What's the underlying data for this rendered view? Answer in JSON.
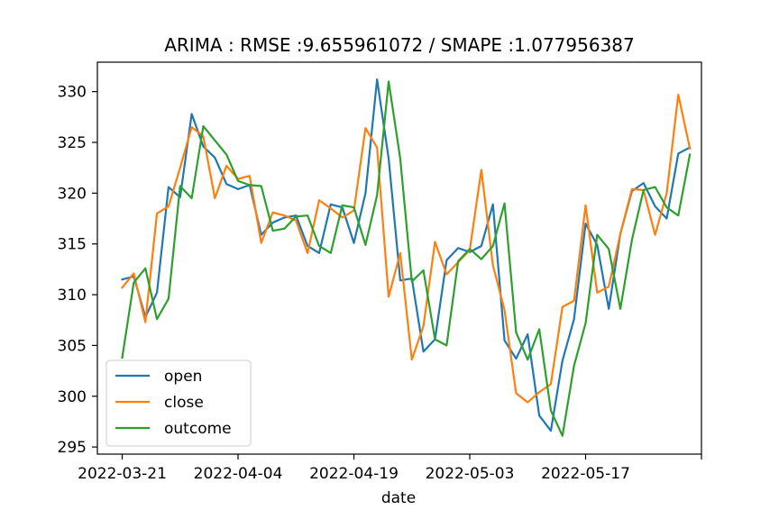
{
  "chart_data": {
    "type": "line",
    "title": "ARIMA : RMSE :9.655961072 / SMAPE :1.077956387",
    "xlabel": "date",
    "ylabel": "",
    "ylim": [
      294.3,
      332.9
    ],
    "yticks": [
      295,
      300,
      305,
      310,
      315,
      320,
      325,
      330
    ],
    "xlim": [
      -3,
      70
    ],
    "xticks": [
      {
        "x": 0,
        "label": "2022-03-21"
      },
      {
        "x": 14,
        "label": "2022-04-04"
      },
      {
        "x": 28,
        "label": "2022-04-19"
      },
      {
        "x": 42,
        "label": "2022-05-03"
      },
      {
        "x": 56,
        "label": "2022-05-17"
      },
      {
        "x": 70,
        "label": ""
      }
    ],
    "x": [
      0,
      1.4,
      2.8,
      4.2,
      5.6,
      7,
      8.4,
      9.8,
      11.2,
      12.6,
      14,
      15.4,
      16.8,
      18.2,
      19.6,
      21,
      22.4,
      23.8,
      25.2,
      26.6,
      28,
      29.4,
      30.8,
      32.2,
      33.6,
      35,
      36.4,
      37.8,
      39.2,
      40.6,
      42,
      43.4,
      44.8,
      46.2,
      47.6,
      49,
      50.4,
      51.8,
      53.2,
      54.6,
      56,
      57.4,
      58.8,
      60.2,
      61.6,
      63,
      64.4,
      65.8,
      67.2,
      68.6
    ],
    "series": [
      {
        "name": "open",
        "color": "#1f77b4",
        "values": [
          311.5,
          311.8,
          307.8,
          310.2,
          320.6,
          319.6,
          327.8,
          324.6,
          323.5,
          320.9,
          320.4,
          320.8,
          315.9,
          317.1,
          317.6,
          317.8,
          314.8,
          314.1,
          318.9,
          318.6,
          315.1,
          320.0,
          331.2,
          323.4,
          311.4,
          311.6,
          304.4,
          305.6,
          313.4,
          314.6,
          314.2,
          314.8,
          318.9,
          305.5,
          303.7,
          306.1,
          298.1,
          296.6,
          303.5,
          307.6,
          317.0,
          314.9,
          308.6,
          316.0,
          320.2,
          321.0,
          318.7,
          317.5,
          323.9,
          324.5
        ]
      },
      {
        "name": "close",
        "color": "#ff7f0e",
        "values": [
          310.7,
          312.1,
          307.3,
          318.0,
          318.7,
          322.5,
          326.5,
          325.6,
          319.5,
          322.7,
          321.4,
          321.7,
          315.1,
          318.1,
          317.8,
          317.3,
          314.1,
          319.3,
          318.5,
          317.6,
          318.3,
          326.4,
          324.5,
          309.8,
          314.1,
          303.6,
          306.9,
          315.2,
          312.0,
          313.2,
          314.4,
          322.3,
          312.9,
          308.5,
          300.3,
          299.4,
          300.4,
          301.2,
          308.8,
          309.4,
          318.8,
          310.2,
          310.8,
          316.0,
          320.4,
          320.3,
          315.9,
          320.0,
          329.7,
          324.4
        ]
      },
      {
        "name": "outcome",
        "color": "#2ca02c",
        "values": [
          303.8,
          311.2,
          312.6,
          307.6,
          309.6,
          320.7,
          319.5,
          326.6,
          325.2,
          323.8,
          321.2,
          320.8,
          320.7,
          316.3,
          316.5,
          317.7,
          317.8,
          314.8,
          314.1,
          318.8,
          318.6,
          314.9,
          319.8,
          331.0,
          323.4,
          311.3,
          312.4,
          305.6,
          305.0,
          313.3,
          314.5,
          313.5,
          314.8,
          319.0,
          306.3,
          303.6,
          306.6,
          298.6,
          296.1,
          303.0,
          307.2,
          315.9,
          314.5,
          308.6,
          315.4,
          320.3,
          320.6,
          318.6,
          317.8,
          323.8
        ]
      }
    ],
    "legend": {
      "position": "lower-left"
    },
    "grid": false
  }
}
